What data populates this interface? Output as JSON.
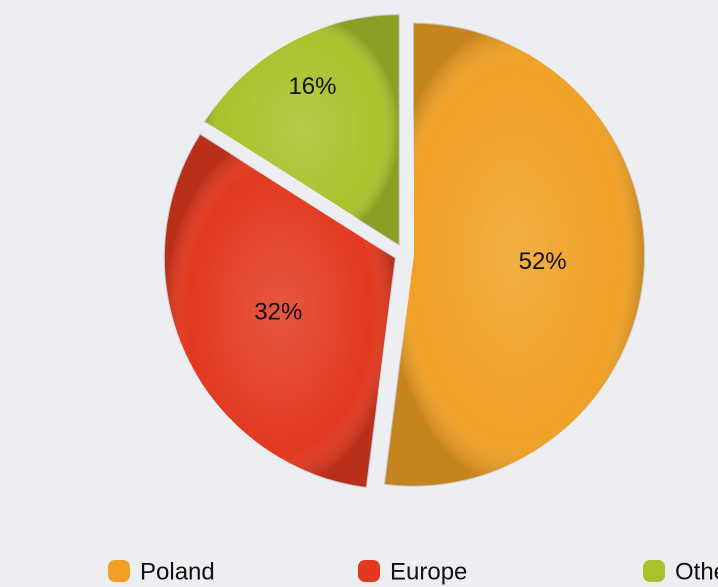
{
  "chart_data": {
    "type": "pie",
    "categories": [
      "Poland",
      "Europe",
      "Other"
    ],
    "values": [
      52,
      32,
      16
    ],
    "value_labels": [
      "52%",
      "32%",
      "16%"
    ],
    "colors": [
      "#f0a125",
      "#e2391f",
      "#a9c22c"
    ]
  }
}
